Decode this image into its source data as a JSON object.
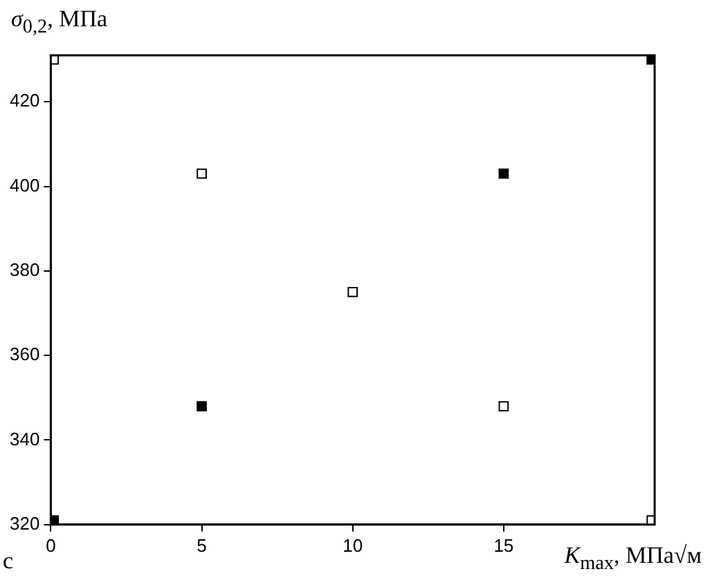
{
  "chart_data": {
    "type": "scatter",
    "ylabel": "σ$_{0,2}$, МПа",
    "xlabel": "K$_{max}$, МПа√м",
    "annotations": [
      "c"
    ],
    "marker": "square",
    "legend": false,
    "grid": false,
    "xlim": [
      0,
      20
    ],
    "xticks": [
      0,
      5,
      10,
      15
    ],
    "ylim": [
      320,
      431
    ],
    "yticks": [
      320,
      340,
      360,
      380,
      400,
      420
    ],
    "series": [
      {
        "color": "#ffffff",
        "x": [
          0.1,
          5,
          10,
          15,
          19.9
        ],
        "values": [
          430,
          403,
          375,
          348,
          321
        ]
      },
      {
        "color": "#000000",
        "x": [
          0.1,
          5,
          15,
          19.9
        ],
        "values": [
          321,
          348,
          403,
          430
        ]
      }
    ]
  }
}
